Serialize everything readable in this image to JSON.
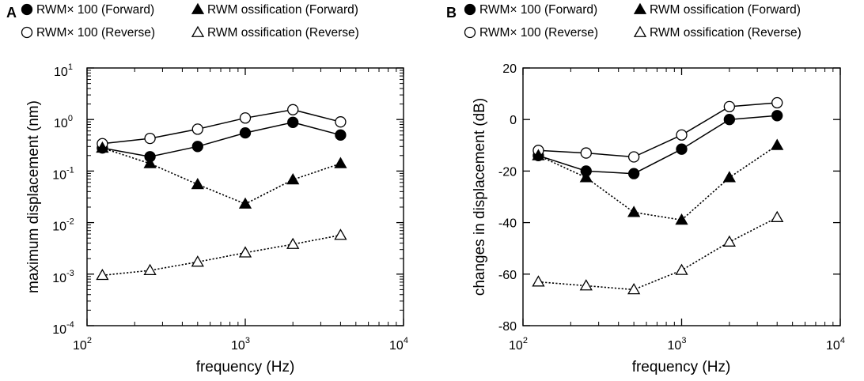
{
  "chart_data": [
    {
      "panel": "A",
      "type": "line",
      "yscale": "log",
      "xscale": "log",
      "xlabel": "frequency (Hz)",
      "ylabel": "maximum displacement (nm)",
      "xlim": [
        100,
        10000
      ],
      "ylim": [
        0.0001,
        10
      ],
      "x_ticks": [
        {
          "base": "10",
          "exp": "2"
        },
        {
          "base": "10",
          "exp": "3"
        },
        {
          "base": "10",
          "exp": "4"
        }
      ],
      "y_ticks": [
        {
          "base": "10",
          "exp": "-4"
        },
        {
          "base": "10",
          "exp": "-3"
        },
        {
          "base": "10",
          "exp": "-2"
        },
        {
          "base": "10",
          "exp": "-1"
        },
        {
          "base": "10",
          "exp": "0"
        },
        {
          "base": "10",
          "exp": "1"
        }
      ],
      "x": [
        125,
        250,
        500,
        1000,
        2000,
        4000
      ],
      "series": [
        {
          "name": "RWM× 100 (Forward)",
          "marker": "circle-filled",
          "line": "solid",
          "values": [
            0.28,
            0.19,
            0.3,
            0.55,
            0.88,
            0.5
          ]
        },
        {
          "name": "RWM× 100 (Reverse)",
          "marker": "circle-open",
          "line": "solid",
          "values": [
            0.34,
            0.43,
            0.65,
            1.07,
            1.55,
            0.9
          ]
        },
        {
          "name": "RWM ossification (Forward)",
          "marker": "triangle-filled",
          "line": "dotted",
          "values": [
            0.28,
            0.14,
            0.055,
            0.023,
            0.068,
            0.14
          ]
        },
        {
          "name": "RWM ossification (Reverse)",
          "marker": "triangle-open",
          "line": "dotted",
          "values": [
            0.00095,
            0.00118,
            0.00172,
            0.0026,
            0.0038,
            0.0057
          ]
        }
      ]
    },
    {
      "panel": "B",
      "type": "line",
      "yscale": "linear",
      "xscale": "log",
      "xlabel": "frequency (Hz)",
      "ylabel": "changes in displacement (dB)",
      "xlim": [
        100,
        10000
      ],
      "ylim": [
        -80,
        20
      ],
      "x_ticks": [
        {
          "base": "10",
          "exp": "2"
        },
        {
          "base": "10",
          "exp": "3"
        },
        {
          "base": "10",
          "exp": "4"
        }
      ],
      "y_ticks": [
        "-80",
        "-60",
        "-40",
        "-20",
        "0",
        "20"
      ],
      "x": [
        125,
        250,
        500,
        1000,
        2000,
        4000
      ],
      "series": [
        {
          "name": "RWM× 100 (Forward)",
          "marker": "circle-filled",
          "line": "solid",
          "values": [
            -14,
            -20,
            -21,
            -11.5,
            0,
            1.5
          ]
        },
        {
          "name": "RWM× 100 (Reverse)",
          "marker": "circle-open",
          "line": "solid",
          "values": [
            -12,
            -13,
            -14.5,
            -6,
            5,
            6.5
          ]
        },
        {
          "name": "RWM ossification (Forward)",
          "marker": "triangle-filled",
          "line": "dotted",
          "values": [
            -14,
            -22.5,
            -36,
            -39,
            -22.5,
            -10
          ]
        },
        {
          "name": "RWM ossification (Reverse)",
          "marker": "triangle-open",
          "line": "dotted",
          "values": [
            -63,
            -64.5,
            -66,
            -58.5,
            -47.5,
            -38
          ]
        }
      ]
    }
  ]
}
